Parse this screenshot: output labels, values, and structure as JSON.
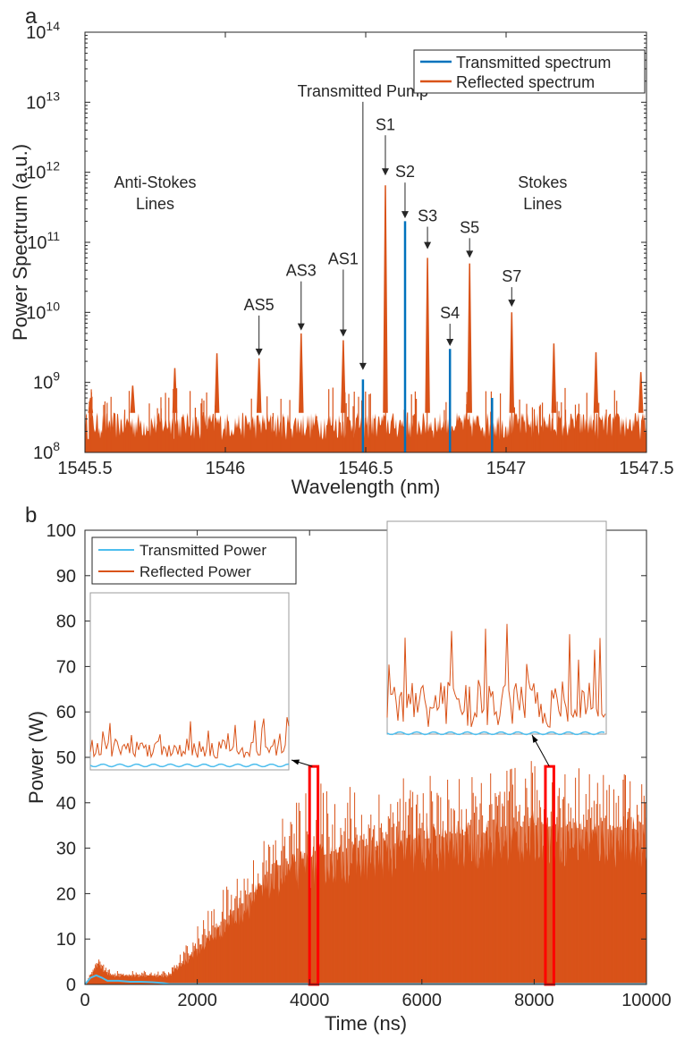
{
  "colors": {
    "transmitted": "#0072BD",
    "reflected": "#D95319",
    "transmitted_b": "#4DBEEE",
    "highlight": "#FF0000",
    "axis": "#262626"
  },
  "chart_data": [
    {
      "panel": "a",
      "type": "line",
      "xlabel": "Wavelength (nm)",
      "ylabel": "Power Spectrum (a.u.)",
      "xlim": [
        1545.5,
        1547.5
      ],
      "ylim": [
        100000000.0,
        100000000000000.0
      ],
      "yscale": "log",
      "x_ticks": [
        1545.5,
        1546,
        1546.5,
        1547,
        1547.5
      ],
      "x_tick_labels": [
        "1545.5",
        "1546",
        "1546.5",
        "1547",
        "1547.5"
      ],
      "y_tick_exponents": [
        "8",
        "9",
        "10",
        "11",
        "12",
        "13",
        "14"
      ],
      "y_tick_base": "10",
      "legend_position": "top-right",
      "series": [
        {
          "name": "Transmitted spectrum",
          "color_key": "transmitted",
          "peaks": [
            {
              "x": 1546.49,
              "y": 1100000000.0
            },
            {
              "x": 1546.64,
              "y": 200000000000.0
            },
            {
              "x": 1546.8,
              "y": 3000000000.0
            },
            {
              "x": 1546.95,
              "y": 600000000.0
            }
          ]
        },
        {
          "name": "Reflected spectrum",
          "color_key": "reflected",
          "noise_floor": 250000000.0,
          "peaks": [
            {
              "x": 1545.52,
              "y": 600000000.0
            },
            {
              "x": 1545.67,
              "y": 900000000.0
            },
            {
              "x": 1545.82,
              "y": 1600000000.0
            },
            {
              "x": 1545.97,
              "y": 2600000000.0
            },
            {
              "x": 1546.12,
              "y": 2200000000.0
            },
            {
              "x": 1546.27,
              "y": 5000000000.0
            },
            {
              "x": 1546.42,
              "y": 4000000000.0
            },
            {
              "x": 1546.57,
              "y": 650000000000.0
            },
            {
              "x": 1546.72,
              "y": 60000000000.0
            },
            {
              "x": 1546.87,
              "y": 50000000000.0
            },
            {
              "x": 1547.02,
              "y": 10000000000.0
            },
            {
              "x": 1547.17,
              "y": 3600000000.0
            },
            {
              "x": 1547.32,
              "y": 2700000000.0
            },
            {
              "x": 1547.48,
              "y": 1400000000.0
            }
          ]
        }
      ],
      "annotations": [
        {
          "text": "Transmitted Pump",
          "x": 1546.49,
          "y": 1500000000.0
        },
        {
          "text": "S1",
          "x": 1546.57,
          "y": 900000000000.0
        },
        {
          "text": "S2",
          "x": 1546.64,
          "y": 220000000000.0
        },
        {
          "text": "S3",
          "x": 1546.72,
          "y": 80000000000.0
        },
        {
          "text": "S4",
          "x": 1546.8,
          "y": 3300000000.0
        },
        {
          "text": "S5",
          "x": 1546.87,
          "y": 60000000000.0
        },
        {
          "text": "S7",
          "x": 1547.02,
          "y": 12000000000.0
        },
        {
          "text": "AS1",
          "x": 1546.42,
          "y": 4500000000.0
        },
        {
          "text": "AS3",
          "x": 1546.27,
          "y": 5500000000.0
        },
        {
          "text": "AS5",
          "x": 1546.12,
          "y": 2400000000.0
        }
      ],
      "text_labels": [
        {
          "lines": [
            "Anti-Stokes",
            "Lines"
          ],
          "x": 1545.75,
          "y": 600000000000.0
        },
        {
          "lines": [
            "Stokes",
            "Lines"
          ],
          "x": 1547.13,
          "y": 600000000000.0
        }
      ]
    },
    {
      "panel": "b",
      "type": "line",
      "xlabel": "Time (ns)",
      "ylabel": "Power (W)",
      "xlim": [
        0,
        10000
      ],
      "ylim": [
        0,
        100
      ],
      "x_ticks": [
        0,
        2000,
        4000,
        6000,
        8000,
        10000
      ],
      "y_ticks": [
        0,
        10,
        20,
        30,
        40,
        50,
        60,
        70,
        80,
        90,
        100
      ],
      "legend_position": "top-left",
      "series": [
        {
          "name": "Transmitted Power",
          "color_key": "transmitted_b",
          "x": [
            0,
            100,
            200,
            300,
            400,
            600,
            800,
            1000,
            1200,
            1400,
            1500,
            10000
          ],
          "y": [
            0,
            1.5,
            2.0,
            1.5,
            0.8,
            0.8,
            0.6,
            0.6,
            0.5,
            0.3,
            0.1,
            0.1
          ]
        },
        {
          "name": "Reflected Power",
          "color_key": "reflected",
          "envelope_x": [
            0,
            150,
            250,
            350,
            500,
            1000,
            1500,
            2000,
            2500,
            3000,
            3500,
            4000,
            5000,
            6000,
            7000,
            8000,
            9000,
            10000
          ],
          "envelope_y": [
            0,
            3,
            5,
            3,
            2,
            2,
            2,
            8,
            14,
            20,
            26,
            28,
            30,
            32,
            33,
            35,
            34,
            34
          ],
          "peak_y": [
            0,
            4,
            6,
            4,
            3,
            3,
            3,
            13,
            22,
            30,
            38,
            44,
            46,
            46,
            46,
            50,
            48,
            46
          ]
        }
      ],
      "highlight_boxes": [
        {
          "x0": 4000,
          "x1": 4150,
          "y0": 0,
          "y1": 48
        },
        {
          "x0": 8200,
          "x1": 8350,
          "y0": 0,
          "y1": 48
        }
      ]
    }
  ]
}
